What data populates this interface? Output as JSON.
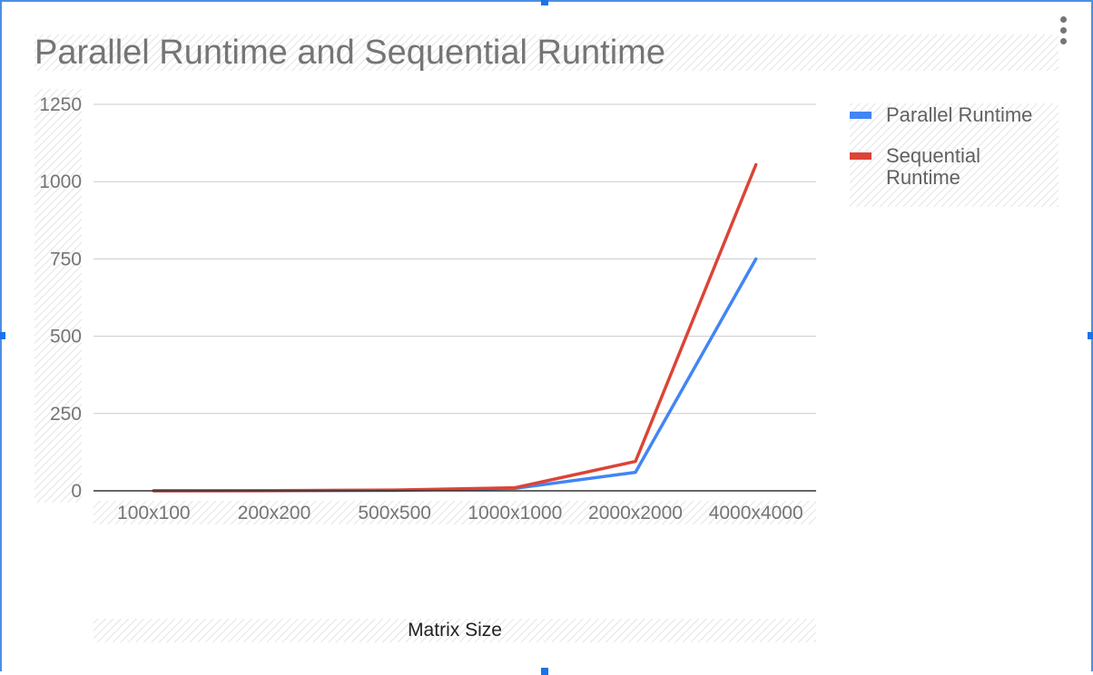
{
  "chart_data": {
    "type": "line",
    "title": "Parallel Runtime and Sequential Runtime",
    "xlabel": "Matrix Size",
    "ylabel": "",
    "categories": [
      "100x100",
      "200x200",
      "500x500",
      "1000x1000",
      "2000x2000",
      "4000x4000"
    ],
    "ylim": [
      0,
      1250
    ],
    "yticks": [
      "0",
      "250",
      "500",
      "750",
      "1000",
      "1250"
    ],
    "grid": true,
    "legend_position": "right",
    "series": [
      {
        "name": "Parallel Runtime",
        "color": "#4285f4",
        "values": [
          0.1,
          0.3,
          1.5,
          8,
          60,
          750
        ]
      },
      {
        "name": "Sequential Runtime",
        "color": "#db4437",
        "values": [
          0.2,
          0.5,
          2.5,
          10,
          95,
          1055
        ]
      }
    ]
  },
  "icons": {
    "menu": "more-vert-icon"
  }
}
